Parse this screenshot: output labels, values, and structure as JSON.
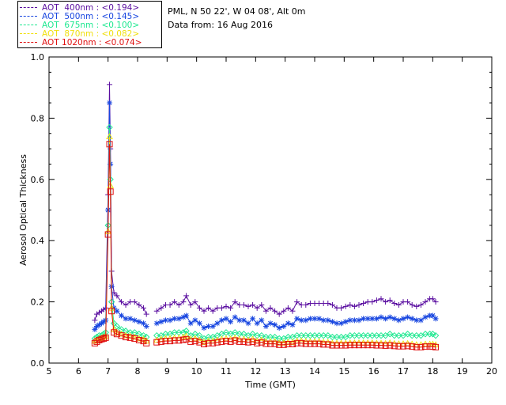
{
  "site_info": "PML, N 50 22', W 04 08', Alt 0m",
  "date_info": "Data from: 16 Aug 2016",
  "legend": [
    {
      "label": "AOT  400nm : <0.194>",
      "color": "#5a0ea0"
    },
    {
      "label": "AOT  500nm : <0.145>",
      "color": "#1846e0"
    },
    {
      "label": "AOT  675nm : <0.100>",
      "color": "#1ee890"
    },
    {
      "label": "AOT  870nm : <0.082>",
      "color": "#f0e010"
    },
    {
      "label": "AOT 1020nm : <0.074>",
      "color": "#e01010"
    }
  ],
  "chart_data": {
    "type": "scatter",
    "xlabel": "Time (GMT)",
    "ylabel": "Aerosol Optical Thickness",
    "xlim": [
      5,
      20
    ],
    "ylim": [
      0,
      1.0
    ],
    "xticks": [
      "5",
      "6",
      "7",
      "8",
      "9",
      "10",
      "11",
      "12",
      "13",
      "14",
      "15",
      "16",
      "17",
      "18",
      "19",
      "20"
    ],
    "yticks": [
      "0.0",
      "0.2",
      "0.4",
      "0.6",
      "0.8",
      "1.0"
    ],
    "series": [
      {
        "name": "AOT 400nm",
        "color": "#5a0ea0",
        "marker": "plus",
        "x": [
          6.55,
          6.62,
          6.7,
          6.78,
          6.85,
          6.92,
          7.0,
          7.05,
          7.08,
          7.12,
          7.2,
          7.3,
          7.45,
          7.6,
          7.75,
          7.9,
          8.05,
          8.2,
          8.3,
          8.65,
          8.8,
          8.95,
          9.1,
          9.25,
          9.4,
          9.55,
          9.65,
          9.8,
          9.95,
          10.1,
          10.25,
          10.4,
          10.55,
          10.7,
          10.85,
          11.0,
          11.15,
          11.3,
          11.45,
          11.6,
          11.75,
          11.9,
          12.05,
          12.2,
          12.35,
          12.5,
          12.65,
          12.8,
          12.95,
          13.1,
          13.25,
          13.4,
          13.55,
          13.7,
          13.85,
          14.0,
          14.15,
          14.3,
          14.45,
          14.6,
          14.75,
          14.9,
          15.05,
          15.2,
          15.35,
          15.5,
          15.65,
          15.8,
          15.95,
          16.1,
          16.25,
          16.4,
          16.55,
          16.7,
          16.85,
          17.0,
          17.15,
          17.3,
          17.45,
          17.6,
          17.75,
          17.9,
          18.0,
          18.1
        ],
        "y": [
          0.14,
          0.16,
          0.165,
          0.17,
          0.175,
          0.18,
          0.55,
          0.91,
          0.7,
          0.3,
          0.23,
          0.22,
          0.2,
          0.19,
          0.2,
          0.2,
          0.19,
          0.18,
          0.16,
          0.17,
          0.18,
          0.19,
          0.19,
          0.2,
          0.19,
          0.2,
          0.22,
          0.19,
          0.2,
          0.18,
          0.17,
          0.18,
          0.17,
          0.18,
          0.18,
          0.185,
          0.18,
          0.2,
          0.19,
          0.19,
          0.185,
          0.19,
          0.18,
          0.19,
          0.17,
          0.18,
          0.17,
          0.16,
          0.17,
          0.18,
          0.17,
          0.2,
          0.19,
          0.19,
          0.195,
          0.195,
          0.195,
          0.195,
          0.195,
          0.19,
          0.18,
          0.18,
          0.185,
          0.19,
          0.185,
          0.19,
          0.195,
          0.2,
          0.2,
          0.205,
          0.21,
          0.2,
          0.205,
          0.195,
          0.19,
          0.2,
          0.2,
          0.19,
          0.185,
          0.19,
          0.2,
          0.21,
          0.21,
          0.2
        ]
      },
      {
        "name": "AOT 500nm",
        "color": "#1846e0",
        "marker": "star",
        "x": [
          6.55,
          6.62,
          6.7,
          6.78,
          6.85,
          6.92,
          7.0,
          7.05,
          7.08,
          7.12,
          7.2,
          7.3,
          7.45,
          7.6,
          7.75,
          7.9,
          8.05,
          8.2,
          8.3,
          8.65,
          8.8,
          8.95,
          9.1,
          9.25,
          9.4,
          9.55,
          9.65,
          9.8,
          9.95,
          10.1,
          10.25,
          10.4,
          10.55,
          10.7,
          10.85,
          11.0,
          11.15,
          11.3,
          11.45,
          11.6,
          11.75,
          11.9,
          12.05,
          12.2,
          12.35,
          12.5,
          12.65,
          12.8,
          12.95,
          13.1,
          13.25,
          13.4,
          13.55,
          13.7,
          13.85,
          14.0,
          14.15,
          14.3,
          14.45,
          14.6,
          14.75,
          14.9,
          15.05,
          15.2,
          15.35,
          15.5,
          15.65,
          15.8,
          15.95,
          16.1,
          16.25,
          16.4,
          16.55,
          16.7,
          16.85,
          17.0,
          17.15,
          17.3,
          17.45,
          17.6,
          17.75,
          17.9,
          18.0,
          18.1
        ],
        "y": [
          0.11,
          0.12,
          0.125,
          0.13,
          0.135,
          0.14,
          0.5,
          0.85,
          0.65,
          0.25,
          0.18,
          0.17,
          0.155,
          0.145,
          0.145,
          0.14,
          0.135,
          0.13,
          0.12,
          0.13,
          0.135,
          0.14,
          0.14,
          0.145,
          0.145,
          0.15,
          0.155,
          0.13,
          0.14,
          0.13,
          0.115,
          0.12,
          0.12,
          0.13,
          0.14,
          0.145,
          0.135,
          0.15,
          0.14,
          0.14,
          0.13,
          0.145,
          0.13,
          0.14,
          0.12,
          0.13,
          0.125,
          0.115,
          0.12,
          0.13,
          0.125,
          0.145,
          0.14,
          0.14,
          0.145,
          0.145,
          0.145,
          0.14,
          0.14,
          0.135,
          0.13,
          0.13,
          0.135,
          0.14,
          0.14,
          0.14,
          0.145,
          0.145,
          0.145,
          0.145,
          0.15,
          0.145,
          0.15,
          0.145,
          0.14,
          0.145,
          0.15,
          0.145,
          0.14,
          0.14,
          0.15,
          0.155,
          0.155,
          0.145
        ]
      },
      {
        "name": "AOT 675nm",
        "color": "#1ee890",
        "marker": "diamond",
        "x": [
          6.55,
          6.62,
          6.7,
          6.78,
          6.85,
          6.92,
          7.0,
          7.05,
          7.08,
          7.12,
          7.2,
          7.3,
          7.45,
          7.6,
          7.75,
          7.9,
          8.05,
          8.2,
          8.3,
          8.65,
          8.8,
          8.95,
          9.1,
          9.25,
          9.4,
          9.55,
          9.65,
          9.8,
          9.95,
          10.1,
          10.25,
          10.4,
          10.55,
          10.7,
          10.85,
          11.0,
          11.15,
          11.3,
          11.45,
          11.6,
          11.75,
          11.9,
          12.05,
          12.2,
          12.35,
          12.5,
          12.65,
          12.8,
          12.95,
          13.1,
          13.25,
          13.4,
          13.55,
          13.7,
          13.85,
          14.0,
          14.15,
          14.3,
          14.45,
          14.6,
          14.75,
          14.9,
          15.05,
          15.2,
          15.35,
          15.5,
          15.65,
          15.8,
          15.95,
          16.1,
          16.25,
          16.4,
          16.55,
          16.7,
          16.85,
          17.0,
          17.15,
          17.3,
          17.45,
          17.6,
          17.75,
          17.9,
          18.0,
          18.1
        ],
        "y": [
          0.08,
          0.085,
          0.09,
          0.09,
          0.095,
          0.1,
          0.45,
          0.77,
          0.6,
          0.2,
          0.13,
          0.12,
          0.11,
          0.105,
          0.1,
          0.1,
          0.095,
          0.09,
          0.085,
          0.09,
          0.09,
          0.095,
          0.095,
          0.1,
          0.1,
          0.1,
          0.105,
          0.09,
          0.095,
          0.09,
          0.08,
          0.085,
          0.085,
          0.09,
          0.095,
          0.1,
          0.095,
          0.1,
          0.095,
          0.095,
          0.09,
          0.095,
          0.09,
          0.09,
          0.085,
          0.085,
          0.085,
          0.08,
          0.08,
          0.085,
          0.085,
          0.09,
          0.09,
          0.09,
          0.09,
          0.09,
          0.09,
          0.09,
          0.09,
          0.085,
          0.085,
          0.085,
          0.085,
          0.09,
          0.09,
          0.09,
          0.09,
          0.09,
          0.09,
          0.09,
          0.09,
          0.09,
          0.095,
          0.09,
          0.09,
          0.09,
          0.095,
          0.09,
          0.09,
          0.09,
          0.095,
          0.095,
          0.095,
          0.09
        ]
      },
      {
        "name": "AOT 870nm",
        "color": "#f0e010",
        "marker": "triangle",
        "x": [
          6.55,
          6.62,
          6.7,
          6.78,
          6.85,
          6.92,
          7.0,
          7.05,
          7.08,
          7.12,
          7.2,
          7.3,
          7.45,
          7.6,
          7.75,
          7.9,
          8.05,
          8.2,
          8.3,
          8.65,
          8.8,
          8.95,
          9.1,
          9.25,
          9.4,
          9.55,
          9.65,
          9.8,
          9.95,
          10.1,
          10.25,
          10.4,
          10.55,
          10.7,
          10.85,
          11.0,
          11.15,
          11.3,
          11.45,
          11.6,
          11.75,
          11.9,
          12.05,
          12.2,
          12.35,
          12.5,
          12.65,
          12.8,
          12.95,
          13.1,
          13.25,
          13.4,
          13.55,
          13.7,
          13.85,
          14.0,
          14.15,
          14.3,
          14.45,
          14.6,
          14.75,
          14.9,
          15.05,
          15.2,
          15.35,
          15.5,
          15.65,
          15.8,
          15.95,
          16.1,
          16.25,
          16.4,
          16.55,
          16.7,
          16.85,
          17.0,
          17.15,
          17.3,
          17.45,
          17.6,
          17.75,
          17.9,
          18.0,
          18.1
        ],
        "y": [
          0.072,
          0.076,
          0.08,
          0.082,
          0.085,
          0.088,
          0.43,
          0.74,
          0.58,
          0.18,
          0.11,
          0.1,
          0.095,
          0.09,
          0.088,
          0.085,
          0.08,
          0.078,
          0.072,
          0.075,
          0.078,
          0.08,
          0.08,
          0.082,
          0.082,
          0.085,
          0.088,
          0.078,
          0.08,
          0.075,
          0.068,
          0.072,
          0.072,
          0.075,
          0.078,
          0.08,
          0.078,
          0.082,
          0.078,
          0.078,
          0.075,
          0.078,
          0.072,
          0.075,
          0.07,
          0.07,
          0.07,
          0.066,
          0.066,
          0.068,
          0.068,
          0.072,
          0.072,
          0.07,
          0.07,
          0.07,
          0.07,
          0.068,
          0.068,
          0.065,
          0.065,
          0.065,
          0.065,
          0.066,
          0.066,
          0.066,
          0.066,
          0.066,
          0.066,
          0.065,
          0.065,
          0.064,
          0.066,
          0.064,
          0.063,
          0.063,
          0.064,
          0.062,
          0.06,
          0.06,
          0.062,
          0.062,
          0.062,
          0.06
        ]
      },
      {
        "name": "AOT 1020nm",
        "color": "#e01010",
        "marker": "square",
        "x": [
          6.55,
          6.62,
          6.7,
          6.78,
          6.85,
          6.92,
          7.0,
          7.05,
          7.08,
          7.12,
          7.2,
          7.3,
          7.45,
          7.6,
          7.75,
          7.9,
          8.05,
          8.2,
          8.3,
          8.65,
          8.8,
          8.95,
          9.1,
          9.25,
          9.4,
          9.55,
          9.65,
          9.8,
          9.95,
          10.1,
          10.25,
          10.4,
          10.55,
          10.7,
          10.85,
          11.0,
          11.15,
          11.3,
          11.45,
          11.6,
          11.75,
          11.9,
          12.05,
          12.2,
          12.35,
          12.5,
          12.65,
          12.8,
          12.95,
          13.1,
          13.25,
          13.4,
          13.55,
          13.7,
          13.85,
          14.0,
          14.15,
          14.3,
          14.45,
          14.6,
          14.75,
          14.9,
          15.05,
          15.2,
          15.35,
          15.5,
          15.65,
          15.8,
          15.95,
          16.1,
          16.25,
          16.4,
          16.55,
          16.7,
          16.85,
          17.0,
          17.15,
          17.3,
          17.45,
          17.6,
          17.75,
          17.9,
          18.0,
          18.1
        ],
        "y": [
          0.065,
          0.07,
          0.075,
          0.078,
          0.08,
          0.083,
          0.42,
          0.715,
          0.56,
          0.17,
          0.1,
          0.095,
          0.09,
          0.085,
          0.083,
          0.08,
          0.075,
          0.072,
          0.065,
          0.068,
          0.07,
          0.072,
          0.072,
          0.074,
          0.074,
          0.076,
          0.078,
          0.07,
          0.072,
          0.068,
          0.062,
          0.065,
          0.065,
          0.068,
          0.07,
          0.072,
          0.07,
          0.074,
          0.07,
          0.07,
          0.068,
          0.07,
          0.065,
          0.068,
          0.063,
          0.063,
          0.063,
          0.06,
          0.06,
          0.062,
          0.062,
          0.065,
          0.065,
          0.063,
          0.063,
          0.063,
          0.063,
          0.061,
          0.061,
          0.058,
          0.058,
          0.058,
          0.058,
          0.059,
          0.059,
          0.059,
          0.059,
          0.059,
          0.059,
          0.058,
          0.058,
          0.057,
          0.058,
          0.056,
          0.055,
          0.055,
          0.056,
          0.054,
          0.052,
          0.052,
          0.054,
          0.054,
          0.054,
          0.052
        ]
      }
    ]
  }
}
